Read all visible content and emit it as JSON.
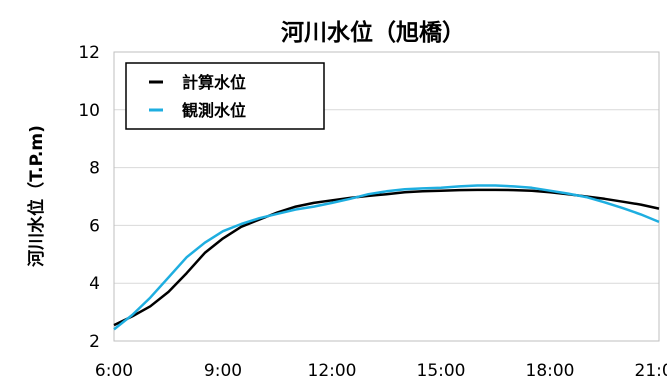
{
  "chart_data": {
    "type": "line",
    "title": "河川水位（旭橋）",
    "xlabel": "",
    "ylabel": "河川水位（T.P.m)",
    "xlim": [
      6,
      21
    ],
    "ylim": [
      2,
      12
    ],
    "x_ticks": [
      "6:00",
      "9:00",
      "12:00",
      "15:00",
      "18:00",
      "21:00"
    ],
    "y_ticks": [
      "2",
      "4",
      "6",
      "8",
      "10",
      "12"
    ],
    "grid": {
      "horizontal": true,
      "vertical": false
    },
    "legend_position": "top-left",
    "series": [
      {
        "name": "計算水位",
        "color": "#000000",
        "x": [
          6.0,
          6.5,
          7.0,
          7.5,
          8.0,
          8.5,
          9.0,
          9.5,
          10.0,
          10.5,
          11.0,
          11.5,
          12.0,
          12.5,
          13.0,
          13.5,
          14.0,
          14.5,
          15.0,
          15.5,
          16.0,
          16.5,
          17.0,
          17.5,
          18.0,
          18.5,
          19.0,
          19.5,
          20.0,
          20.5,
          21.0
        ],
        "y": [
          2.55,
          2.85,
          3.2,
          3.7,
          4.35,
          5.05,
          5.55,
          5.95,
          6.2,
          6.45,
          6.65,
          6.78,
          6.87,
          6.95,
          7.02,
          7.08,
          7.15,
          7.18,
          7.2,
          7.22,
          7.23,
          7.23,
          7.22,
          7.2,
          7.15,
          7.08,
          7.0,
          6.92,
          6.82,
          6.72,
          6.58
        ]
      },
      {
        "name": "観測水位",
        "color": "#1eaee0",
        "x": [
          6.0,
          6.5,
          7.0,
          7.5,
          8.0,
          8.5,
          9.0,
          9.5,
          10.0,
          10.5,
          11.0,
          11.5,
          12.0,
          12.5,
          13.0,
          13.5,
          14.0,
          14.5,
          15.0,
          15.5,
          16.0,
          16.5,
          17.0,
          17.5,
          18.0,
          18.5,
          19.0,
          19.5,
          20.0,
          20.5,
          21.0
        ],
        "y": [
          2.4,
          2.9,
          3.5,
          4.2,
          4.9,
          5.4,
          5.8,
          6.05,
          6.25,
          6.4,
          6.55,
          6.65,
          6.78,
          6.92,
          7.08,
          7.18,
          7.25,
          7.28,
          7.3,
          7.35,
          7.38,
          7.38,
          7.35,
          7.3,
          7.2,
          7.1,
          6.98,
          6.8,
          6.6,
          6.38,
          6.12
        ]
      }
    ]
  }
}
